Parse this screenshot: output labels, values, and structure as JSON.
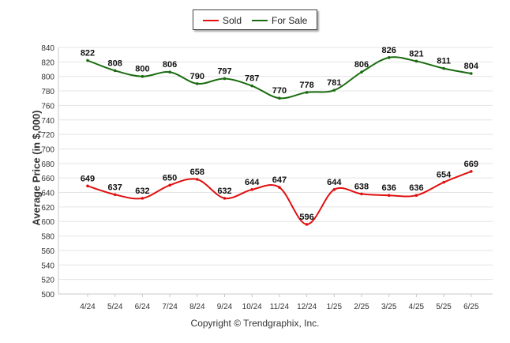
{
  "chart_data": {
    "type": "line",
    "categories": [
      "4/24",
      "5/24",
      "6/24",
      "7/24",
      "8/24",
      "9/24",
      "10/24",
      "11/24",
      "12/24",
      "1/25",
      "2/25",
      "3/25",
      "4/25",
      "5/25",
      "6/25"
    ],
    "series": [
      {
        "name": "Sold",
        "color": "#e01010",
        "values": [
          649,
          637,
          632,
          650,
          658,
          632,
          644,
          647,
          596,
          644,
          638,
          636,
          636,
          654,
          669
        ]
      },
      {
        "name": "For Sale",
        "color": "#1a6b10",
        "values": [
          822,
          808,
          800,
          806,
          790,
          797,
          787,
          770,
          778,
          781,
          806,
          826,
          821,
          811,
          804
        ]
      }
    ],
    "ylabel": "Average Price (in $,000)",
    "ylim": [
      500,
      840
    ],
    "yticks": [
      500,
      520,
      540,
      560,
      580,
      600,
      620,
      640,
      660,
      680,
      700,
      720,
      740,
      760,
      780,
      800,
      820,
      840
    ],
    "grid": true,
    "legend": "top-center",
    "credit": "Copyright © Trendgraphix, Inc."
  }
}
